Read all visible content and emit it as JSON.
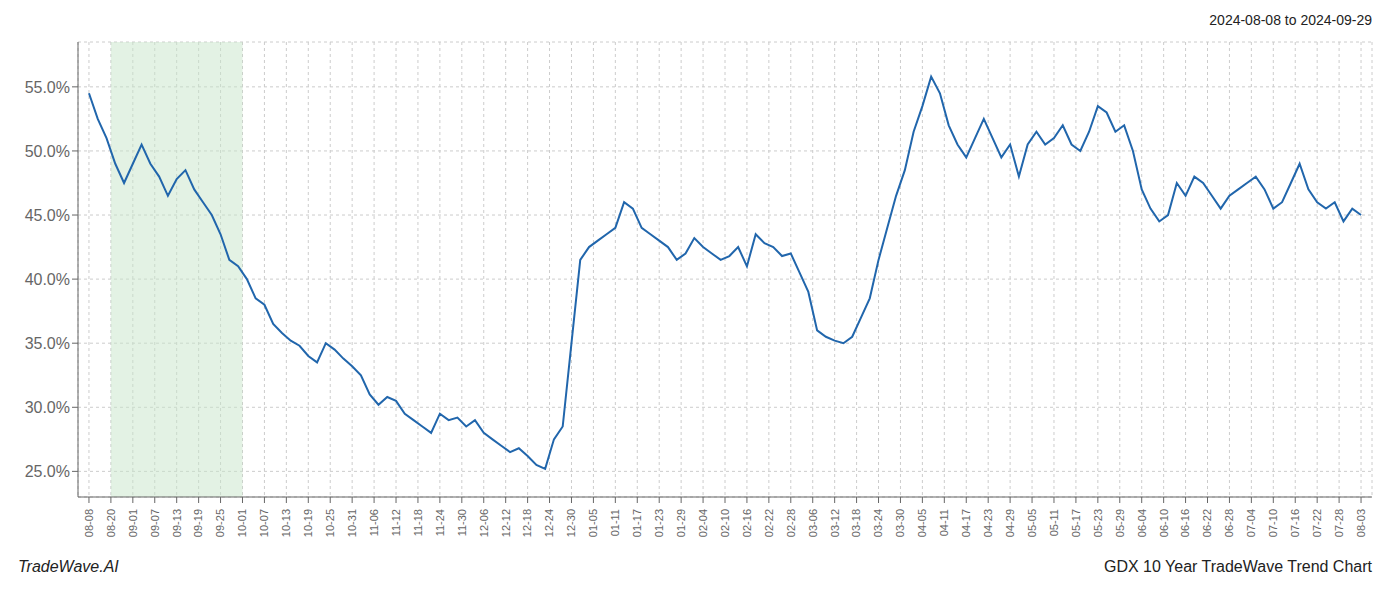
{
  "chart_data": {
    "type": "line",
    "title": "GDX 10 Year TradeWave Trend Chart",
    "subtitle": "2024-08-08 to 2024-09-29",
    "annotations": [
      "TradeWave.AI"
    ],
    "color": "#2166ac",
    "grid": true,
    "highlight": {
      "x": [
        1,
        7
      ],
      "color": "#c8e6c9"
    },
    "xlim": [
      -0.5,
      58.5
    ],
    "xticks": [
      {
        "value": 0,
        "label": "08-08"
      },
      {
        "value": 1,
        "label": "08-20"
      },
      {
        "value": 2,
        "label": "09-01"
      },
      {
        "value": 3,
        "label": "09-07"
      },
      {
        "value": 4,
        "label": "09-13"
      },
      {
        "value": 5,
        "label": "09-19"
      },
      {
        "value": 6,
        "label": "09-25"
      },
      {
        "value": 7,
        "label": "10-01"
      },
      {
        "value": 8,
        "label": "10-07"
      },
      {
        "value": 9,
        "label": "10-13"
      },
      {
        "value": 10,
        "label": "10-19"
      },
      {
        "value": 11,
        "label": "10-25"
      },
      {
        "value": 12,
        "label": "10-31"
      },
      {
        "value": 13,
        "label": "11-06"
      },
      {
        "value": 14,
        "label": "11-12"
      },
      {
        "value": 15,
        "label": "11-18"
      },
      {
        "value": 16,
        "label": "11-24"
      },
      {
        "value": 17,
        "label": "11-30"
      },
      {
        "value": 18,
        "label": "12-06"
      },
      {
        "value": 19,
        "label": "12-12"
      },
      {
        "value": 20,
        "label": "12-18"
      },
      {
        "value": 21,
        "label": "12-24"
      },
      {
        "value": 22,
        "label": "12-30"
      },
      {
        "value": 23,
        "label": "01-05"
      },
      {
        "value": 24,
        "label": "01-11"
      },
      {
        "value": 25,
        "label": "01-17"
      },
      {
        "value": 26,
        "label": "01-23"
      },
      {
        "value": 27,
        "label": "01-29"
      },
      {
        "value": 28,
        "label": "02-04"
      },
      {
        "value": 29,
        "label": "02-10"
      },
      {
        "value": 30,
        "label": "02-16"
      },
      {
        "value": 31,
        "label": "02-22"
      },
      {
        "value": 32,
        "label": "02-28"
      },
      {
        "value": 33,
        "label": "03-06"
      },
      {
        "value": 34,
        "label": "03-12"
      },
      {
        "value": 35,
        "label": "03-18"
      },
      {
        "value": 36,
        "label": "03-24"
      },
      {
        "value": 37,
        "label": "03-30"
      },
      {
        "value": 38,
        "label": "04-05"
      },
      {
        "value": 39,
        "label": "04-11"
      },
      {
        "value": 40,
        "label": "04-17"
      },
      {
        "value": 41,
        "label": "04-23"
      },
      {
        "value": 42,
        "label": "04-29"
      },
      {
        "value": 43,
        "label": "05-05"
      },
      {
        "value": 44,
        "label": "05-11"
      },
      {
        "value": 45,
        "label": "05-17"
      },
      {
        "value": 46,
        "label": "05-23"
      },
      {
        "value": 47,
        "label": "05-29"
      },
      {
        "value": 48,
        "label": "06-04"
      },
      {
        "value": 49,
        "label": "06-10"
      },
      {
        "value": 50,
        "label": "06-16"
      },
      {
        "value": 51,
        "label": "06-22"
      },
      {
        "value": 52,
        "label": "06-28"
      },
      {
        "value": 53,
        "label": "07-04"
      },
      {
        "value": 54,
        "label": "07-10"
      },
      {
        "value": 55,
        "label": "07-16"
      },
      {
        "value": 56,
        "label": "07-22"
      },
      {
        "value": 57,
        "label": "07-28"
      },
      {
        "value": 58,
        "label": "08-03"
      }
    ],
    "ylim": [
      23.0,
      58.5
    ],
    "yticks": [
      {
        "value": 25.0,
        "label": "25.0%"
      },
      {
        "value": 30.0,
        "label": "30.0%"
      },
      {
        "value": 35.0,
        "label": "35.0%"
      },
      {
        "value": 40.0,
        "label": "40.0%"
      },
      {
        "value": 45.0,
        "label": "45.0%"
      },
      {
        "value": 50.0,
        "label": "50.0%"
      },
      {
        "value": 55.0,
        "label": "55.0%"
      }
    ],
    "x": [
      0,
      0.4,
      0.8,
      1.2,
      1.6,
      2,
      2.4,
      2.8,
      3.2,
      3.6,
      4,
      4.4,
      4.8,
      5.2,
      5.6,
      6,
      6.4,
      6.8,
      7.2,
      7.6,
      8,
      8.4,
      8.8,
      9.2,
      9.6,
      10,
      10.4,
      10.8,
      11.2,
      11.6,
      12,
      12.4,
      12.8,
      13.2,
      13.6,
      14,
      14.4,
      14.8,
      15.2,
      15.6,
      16,
      16.4,
      16.8,
      17.2,
      17.6,
      18,
      18.4,
      18.8,
      19.2,
      19.6,
      20,
      20.4,
      20.8,
      21.2,
      21.6,
      22,
      22.4,
      22.8,
      23.2,
      23.6,
      24,
      24.4,
      24.8,
      25.2,
      25.6,
      26,
      26.4,
      26.8,
      27.2,
      27.6,
      28,
      28.4,
      28.8,
      29.2,
      29.6,
      30,
      30.4,
      30.8,
      31.2,
      31.6,
      32,
      32.4,
      32.8,
      33.2,
      33.6,
      34,
      34.4,
      34.8,
      35.2,
      35.6,
      36,
      36.4,
      36.8,
      37.2,
      37.6,
      38,
      38.4,
      38.8,
      39.2,
      39.6,
      40,
      40.4,
      40.8,
      41.2,
      41.6,
      42,
      42.4,
      42.8,
      43.2,
      43.6,
      44,
      44.4,
      44.8,
      45.2,
      45.6,
      46,
      46.4,
      46.8,
      47.2,
      47.6,
      48,
      48.4,
      48.8,
      49.2,
      49.6,
      50,
      50.4,
      50.8,
      51.2,
      51.6,
      52,
      52.4,
      52.8,
      53.2,
      53.6,
      54,
      54.4,
      54.8,
      55.2,
      55.6,
      56,
      56.4,
      56.8,
      57.2,
      57.6,
      58
    ],
    "values": [
      54.5,
      52.5,
      51.0,
      49.0,
      47.5,
      49.0,
      50.5,
      49.0,
      48.0,
      46.5,
      47.8,
      48.5,
      47.0,
      46.0,
      45.0,
      43.5,
      41.5,
      41.0,
      40.0,
      38.5,
      38.0,
      36.5,
      35.8,
      35.2,
      34.8,
      34.0,
      33.5,
      35.0,
      34.5,
      33.8,
      33.2,
      32.5,
      31.0,
      30.2,
      30.8,
      30.5,
      29.5,
      29.0,
      28.5,
      28.0,
      29.5,
      29.0,
      29.2,
      28.5,
      29.0,
      28.0,
      27.5,
      27.0,
      26.5,
      26.8,
      26.2,
      25.5,
      25.2,
      27.5,
      28.5,
      35.0,
      41.5,
      42.5,
      43.0,
      43.5,
      44.0,
      46.0,
      45.5,
      44.0,
      43.5,
      43.0,
      42.5,
      41.5,
      42.0,
      43.2,
      42.5,
      42.0,
      41.5,
      41.8,
      42.5,
      41.0,
      43.5,
      42.8,
      42.5,
      41.8,
      42.0,
      40.5,
      39.0,
      36.0,
      35.5,
      35.2,
      35.0,
      35.5,
      37.0,
      38.5,
      41.5,
      44.0,
      46.5,
      48.5,
      51.5,
      53.5,
      55.8,
      54.5,
      52.0,
      50.5,
      49.5,
      51.0,
      52.5,
      51.0,
      49.5,
      50.5,
      48.0,
      50.5,
      51.5,
      50.5,
      51.0,
      52.0,
      50.5,
      50.0,
      51.5,
      53.5,
      53.0,
      51.5,
      52.0,
      50.0,
      47.0,
      45.5,
      44.5,
      45.0,
      47.5,
      46.5,
      48.0,
      47.5,
      46.5,
      45.5,
      46.5,
      47.0,
      47.5,
      48.0,
      47.0,
      45.5,
      46.0,
      47.5,
      49.0,
      47.0,
      46.0,
      45.5,
      46.0,
      44.5,
      45.5,
      45.0
    ]
  }
}
